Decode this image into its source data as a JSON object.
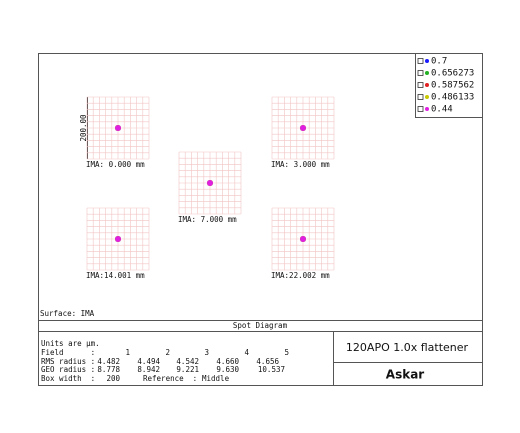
{
  "legend": [
    {
      "label": "0.7",
      "color": "#1a1aff"
    },
    {
      "label": "0.656273",
      "color": "#22b022"
    },
    {
      "label": "0.587562",
      "color": "#e02020"
    },
    {
      "label": "0.486133",
      "color": "#c8c800"
    },
    {
      "label": "0.44",
      "color": "#e020e0"
    }
  ],
  "spots": [
    {
      "label": "IMA: 0.000 mm"
    },
    {
      "label": "IMA: 3.000 mm"
    },
    {
      "label": "IMA: 7.000 mm"
    },
    {
      "label": "IMA:14.001 mm"
    },
    {
      "label": "IMA:22.002 mm"
    }
  ],
  "scale_label": "200.00",
  "surface": "Surface: IMA",
  "title": "Spot Diagram",
  "units": "Units are µm.",
  "table": {
    "field_label": "Field      :",
    "fields": [
      "1",
      "2",
      "3",
      "4",
      "5"
    ],
    "rms_label": "RMS radius :",
    "rms": [
      "4.482",
      "4.494",
      "4.542",
      "4.660",
      "4.656"
    ],
    "geo_label": "GEO radius :",
    "geo": [
      "8.778",
      "8.942",
      "9.221",
      "9.630",
      "10.537"
    ],
    "box_width_label": "Box width  :",
    "box_width": "200",
    "reference_label": "Reference  :",
    "reference": "Middle"
  },
  "lens": "120APO 1.0x flattener",
  "brand": "Askar"
}
